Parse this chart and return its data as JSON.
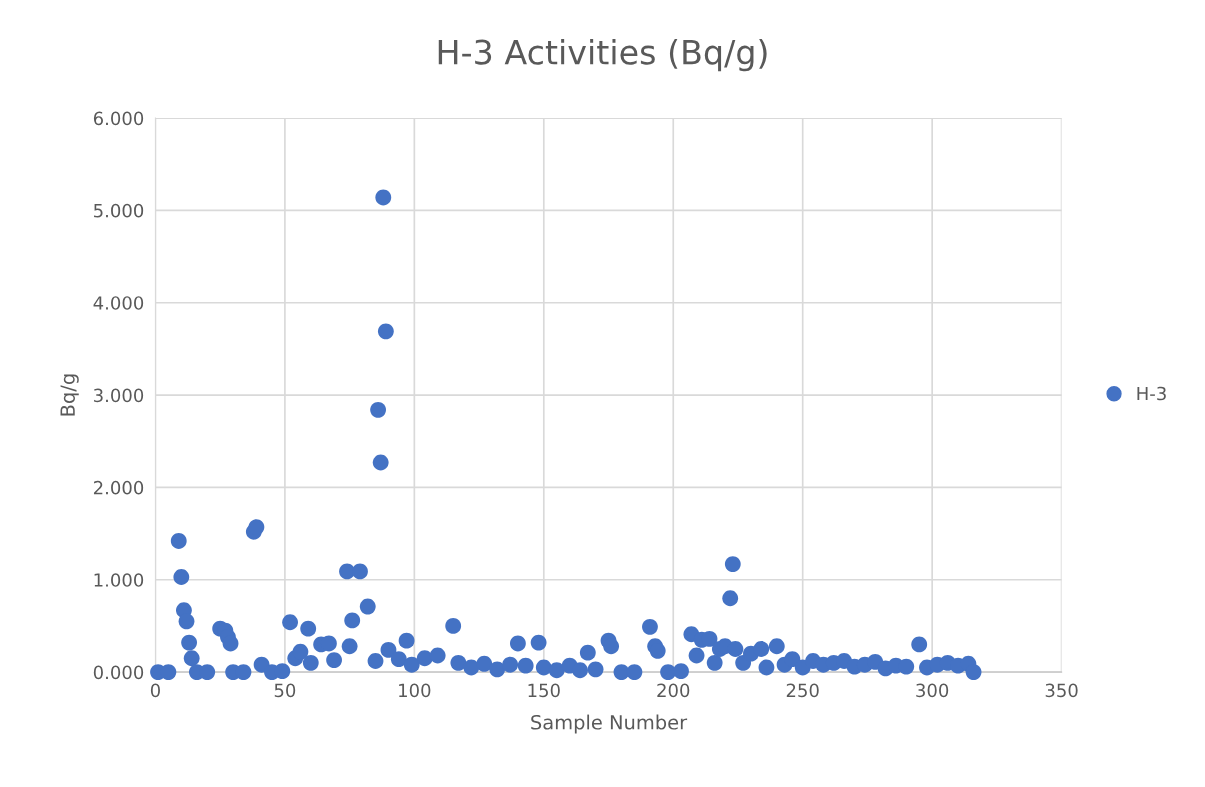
{
  "chart_data": {
    "type": "scatter",
    "title": "H-3 Activities (Bq/g)",
    "xlabel": "Sample Number",
    "ylabel": "Bq/g",
    "series": [
      {
        "name": "H-3",
        "color": "#4472c4",
        "x": [
          1,
          5,
          9,
          10,
          11,
          12,
          13,
          14,
          16,
          20,
          25,
          27,
          28,
          29,
          30,
          34,
          38,
          39,
          41,
          45,
          49,
          52,
          54,
          56,
          59,
          60,
          64,
          67,
          69,
          74,
          75,
          76,
          79,
          82,
          85,
          86,
          87,
          88,
          89,
          90,
          94,
          97,
          99,
          104,
          109,
          115,
          117,
          122,
          127,
          132,
          137,
          140,
          143,
          148,
          150,
          155,
          160,
          164,
          167,
          170,
          175,
          176,
          180,
          185,
          191,
          193,
          194,
          198,
          203,
          207,
          209,
          211,
          214,
          216,
          218,
          220,
          222,
          223,
          224,
          227,
          230,
          234,
          236,
          240,
          243,
          246,
          250,
          254,
          258,
          262,
          266,
          270,
          274,
          278,
          282,
          286,
          290,
          295,
          298,
          302,
          306,
          310,
          314,
          316
        ],
        "values": [
          0,
          0,
          1.42,
          1.03,
          0.67,
          0.55,
          0.32,
          0.15,
          0,
          0,
          0.47,
          0.45,
          0.38,
          0.31,
          0,
          0,
          1.52,
          1.57,
          0.08,
          0,
          0.01,
          0.54,
          0.15,
          0.22,
          0.47,
          0.1,
          0.3,
          0.31,
          0.13,
          1.09,
          0.28,
          0.56,
          1.09,
          0.71,
          0.12,
          2.84,
          2.27,
          5.14,
          3.69,
          0.24,
          0.14,
          0.34,
          0.08,
          0.15,
          0.18,
          0.5,
          0.1,
          0.05,
          0.09,
          0.03,
          0.08,
          0.31,
          0.07,
          0.32,
          0.05,
          0.02,
          0.07,
          0.02,
          0.21,
          0.03,
          0.34,
          0.28,
          0,
          0,
          0.49,
          0.28,
          0.23,
          0,
          0.01,
          0.41,
          0.18,
          0.35,
          0.36,
          0.1,
          0.25,
          0.28,
          0.8,
          1.17,
          0.25,
          0.1,
          0.2,
          0.25,
          0.05,
          0.28,
          0.08,
          0.14,
          0.05,
          0.12,
          0.08,
          0.1,
          0.12,
          0.06,
          0.08,
          0.11,
          0.04,
          0.07,
          0.06,
          0.3,
          0.05,
          0.08,
          0.1,
          0.07,
          0.09,
          0
        ]
      }
    ],
    "xlim": [
      0,
      350
    ],
    "xticks": [
      0,
      50,
      100,
      150,
      200,
      250,
      300,
      350
    ],
    "ylim": [
      0,
      6
    ],
    "yticks": [
      {
        "value": 0,
        "label": "0.000"
      },
      {
        "value": 1,
        "label": "1.000"
      },
      {
        "value": 2,
        "label": "2.000"
      },
      {
        "value": 3,
        "label": "3.000"
      },
      {
        "value": 4,
        "label": "4.000"
      },
      {
        "value": 5,
        "label": "5.000"
      },
      {
        "value": 6,
        "label": "6.000"
      }
    ],
    "grid": true,
    "legend": "right",
    "marker": "circle"
  }
}
